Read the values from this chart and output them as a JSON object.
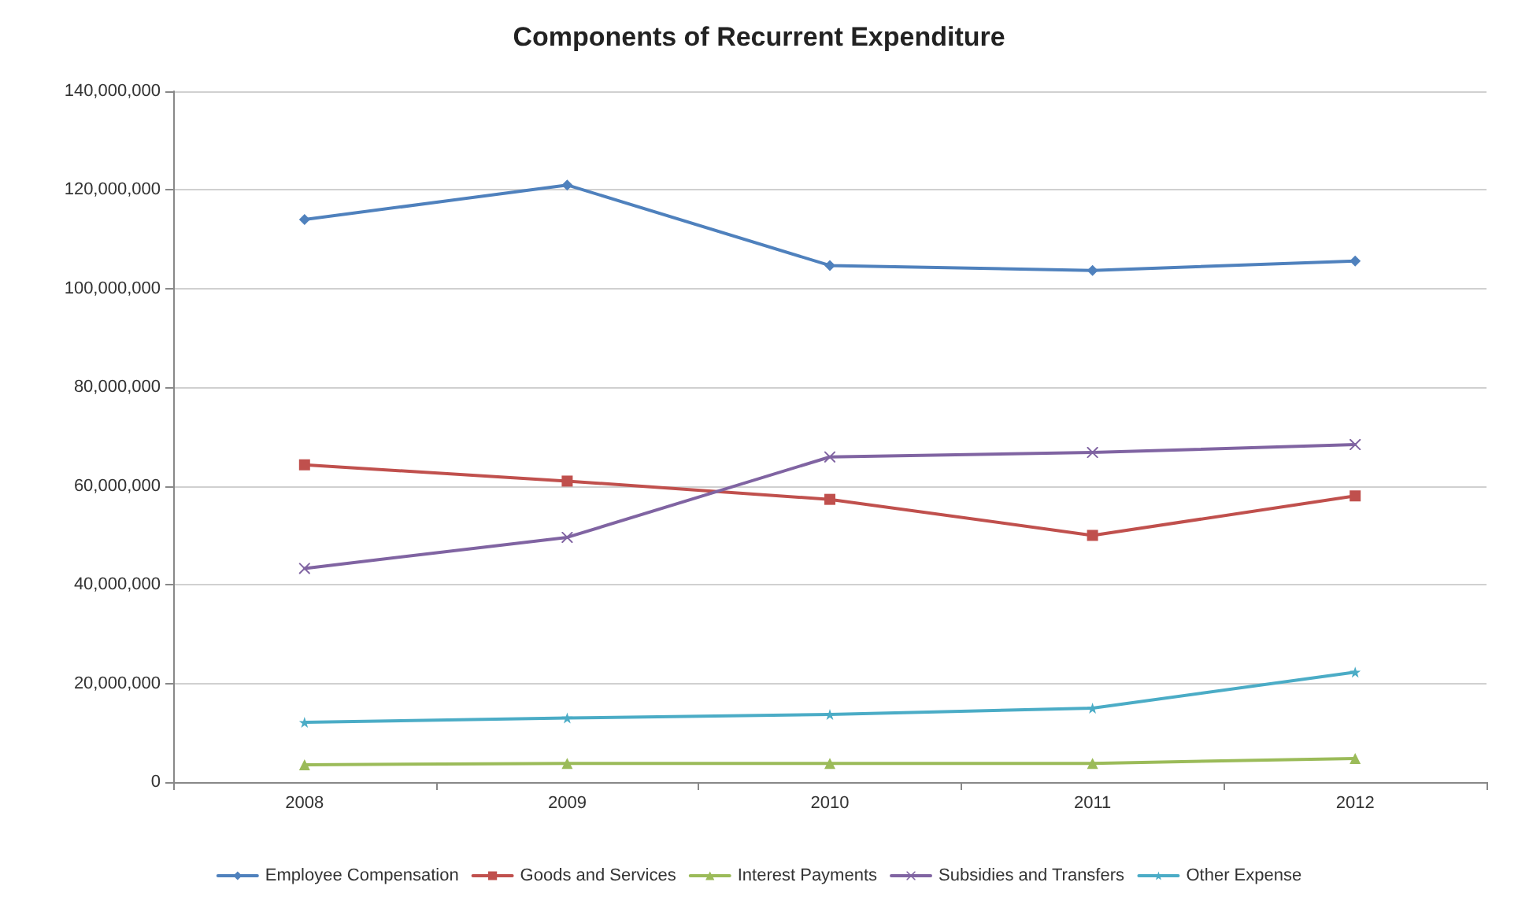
{
  "chart_data": {
    "type": "line",
    "title": "Components of Recurrent Expenditure",
    "categories": [
      "2008",
      "2009",
      "2010",
      "2011",
      "2012"
    ],
    "series": [
      {
        "name": "Employee Compensation",
        "color": "#4f81bd",
        "marker": "diamond",
        "values": [
          114000000,
          121000000,
          104700000,
          103700000,
          105600000
        ]
      },
      {
        "name": "Goods and Services",
        "color": "#c0504d",
        "marker": "square",
        "values": [
          64300000,
          61000000,
          57300000,
          50000000,
          58000000
        ]
      },
      {
        "name": "Interest Payments",
        "color": "#9bbb59",
        "marker": "triangle",
        "values": [
          3500000,
          3800000,
          3800000,
          3800000,
          4800000
        ]
      },
      {
        "name": "Subsidies and Transfers",
        "color": "#8064a2",
        "marker": "cross",
        "values": [
          43300000,
          49600000,
          65900000,
          66800000,
          68400000
        ]
      },
      {
        "name": "Other Expense",
        "color": "#4bacc6",
        "marker": "star",
        "values": [
          12100000,
          13000000,
          13700000,
          15000000,
          22300000
        ]
      }
    ],
    "ylim": [
      0,
      140000000
    ],
    "yticks": [
      {
        "value": 0,
        "label": "0"
      },
      {
        "value": 20000000,
        "label": "20,000,000"
      },
      {
        "value": 40000000,
        "label": "40,000,000"
      },
      {
        "value": 60000000,
        "label": "60,000,000"
      },
      {
        "value": 80000000,
        "label": "80,000,000"
      },
      {
        "value": 100000000,
        "label": "100,000,000"
      },
      {
        "value": 120000000,
        "label": "120,000,000"
      },
      {
        "value": 140000000,
        "label": "140,000,000"
      }
    ],
    "grid": "y",
    "legend": "bottom",
    "line_style": "solid"
  }
}
